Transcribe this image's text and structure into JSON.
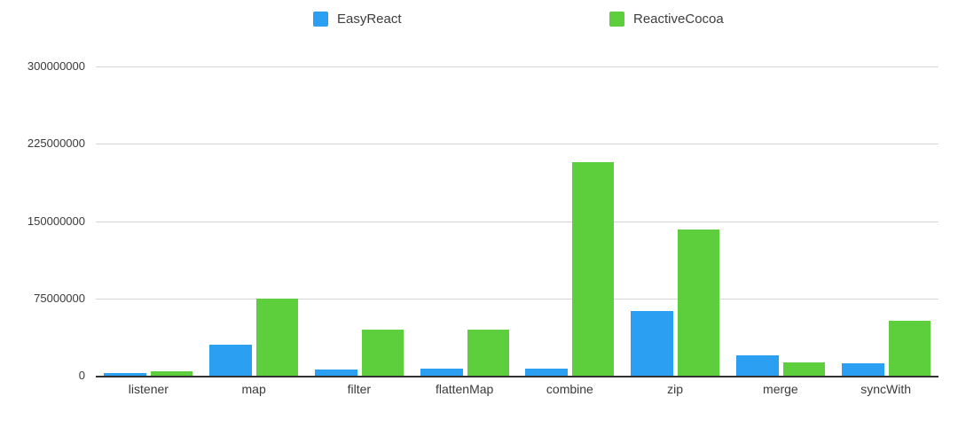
{
  "chart_data": {
    "type": "bar",
    "title": "",
    "xlabel": "",
    "ylabel": "",
    "categories": [
      "listener",
      "map",
      "filter",
      "flattenMap",
      "combine",
      "zip",
      "merge",
      "syncWith"
    ],
    "series": [
      {
        "name": "EasyReact",
        "color": "#2B9FF2",
        "values": [
          2500000,
          30000000,
          6000000,
          7000000,
          7000000,
          63000000,
          20000000,
          12000000
        ]
      },
      {
        "name": "ReactiveCocoa",
        "color": "#5DCE3C",
        "values": [
          4500000,
          75000000,
          45000000,
          45000000,
          207000000,
          142000000,
          13000000,
          53000000
        ]
      }
    ],
    "ylim": [
      0,
      300000000
    ],
    "yticks": [
      0,
      75000000,
      150000000,
      225000000,
      300000000
    ],
    "grid": true,
    "legend_position": "top"
  }
}
